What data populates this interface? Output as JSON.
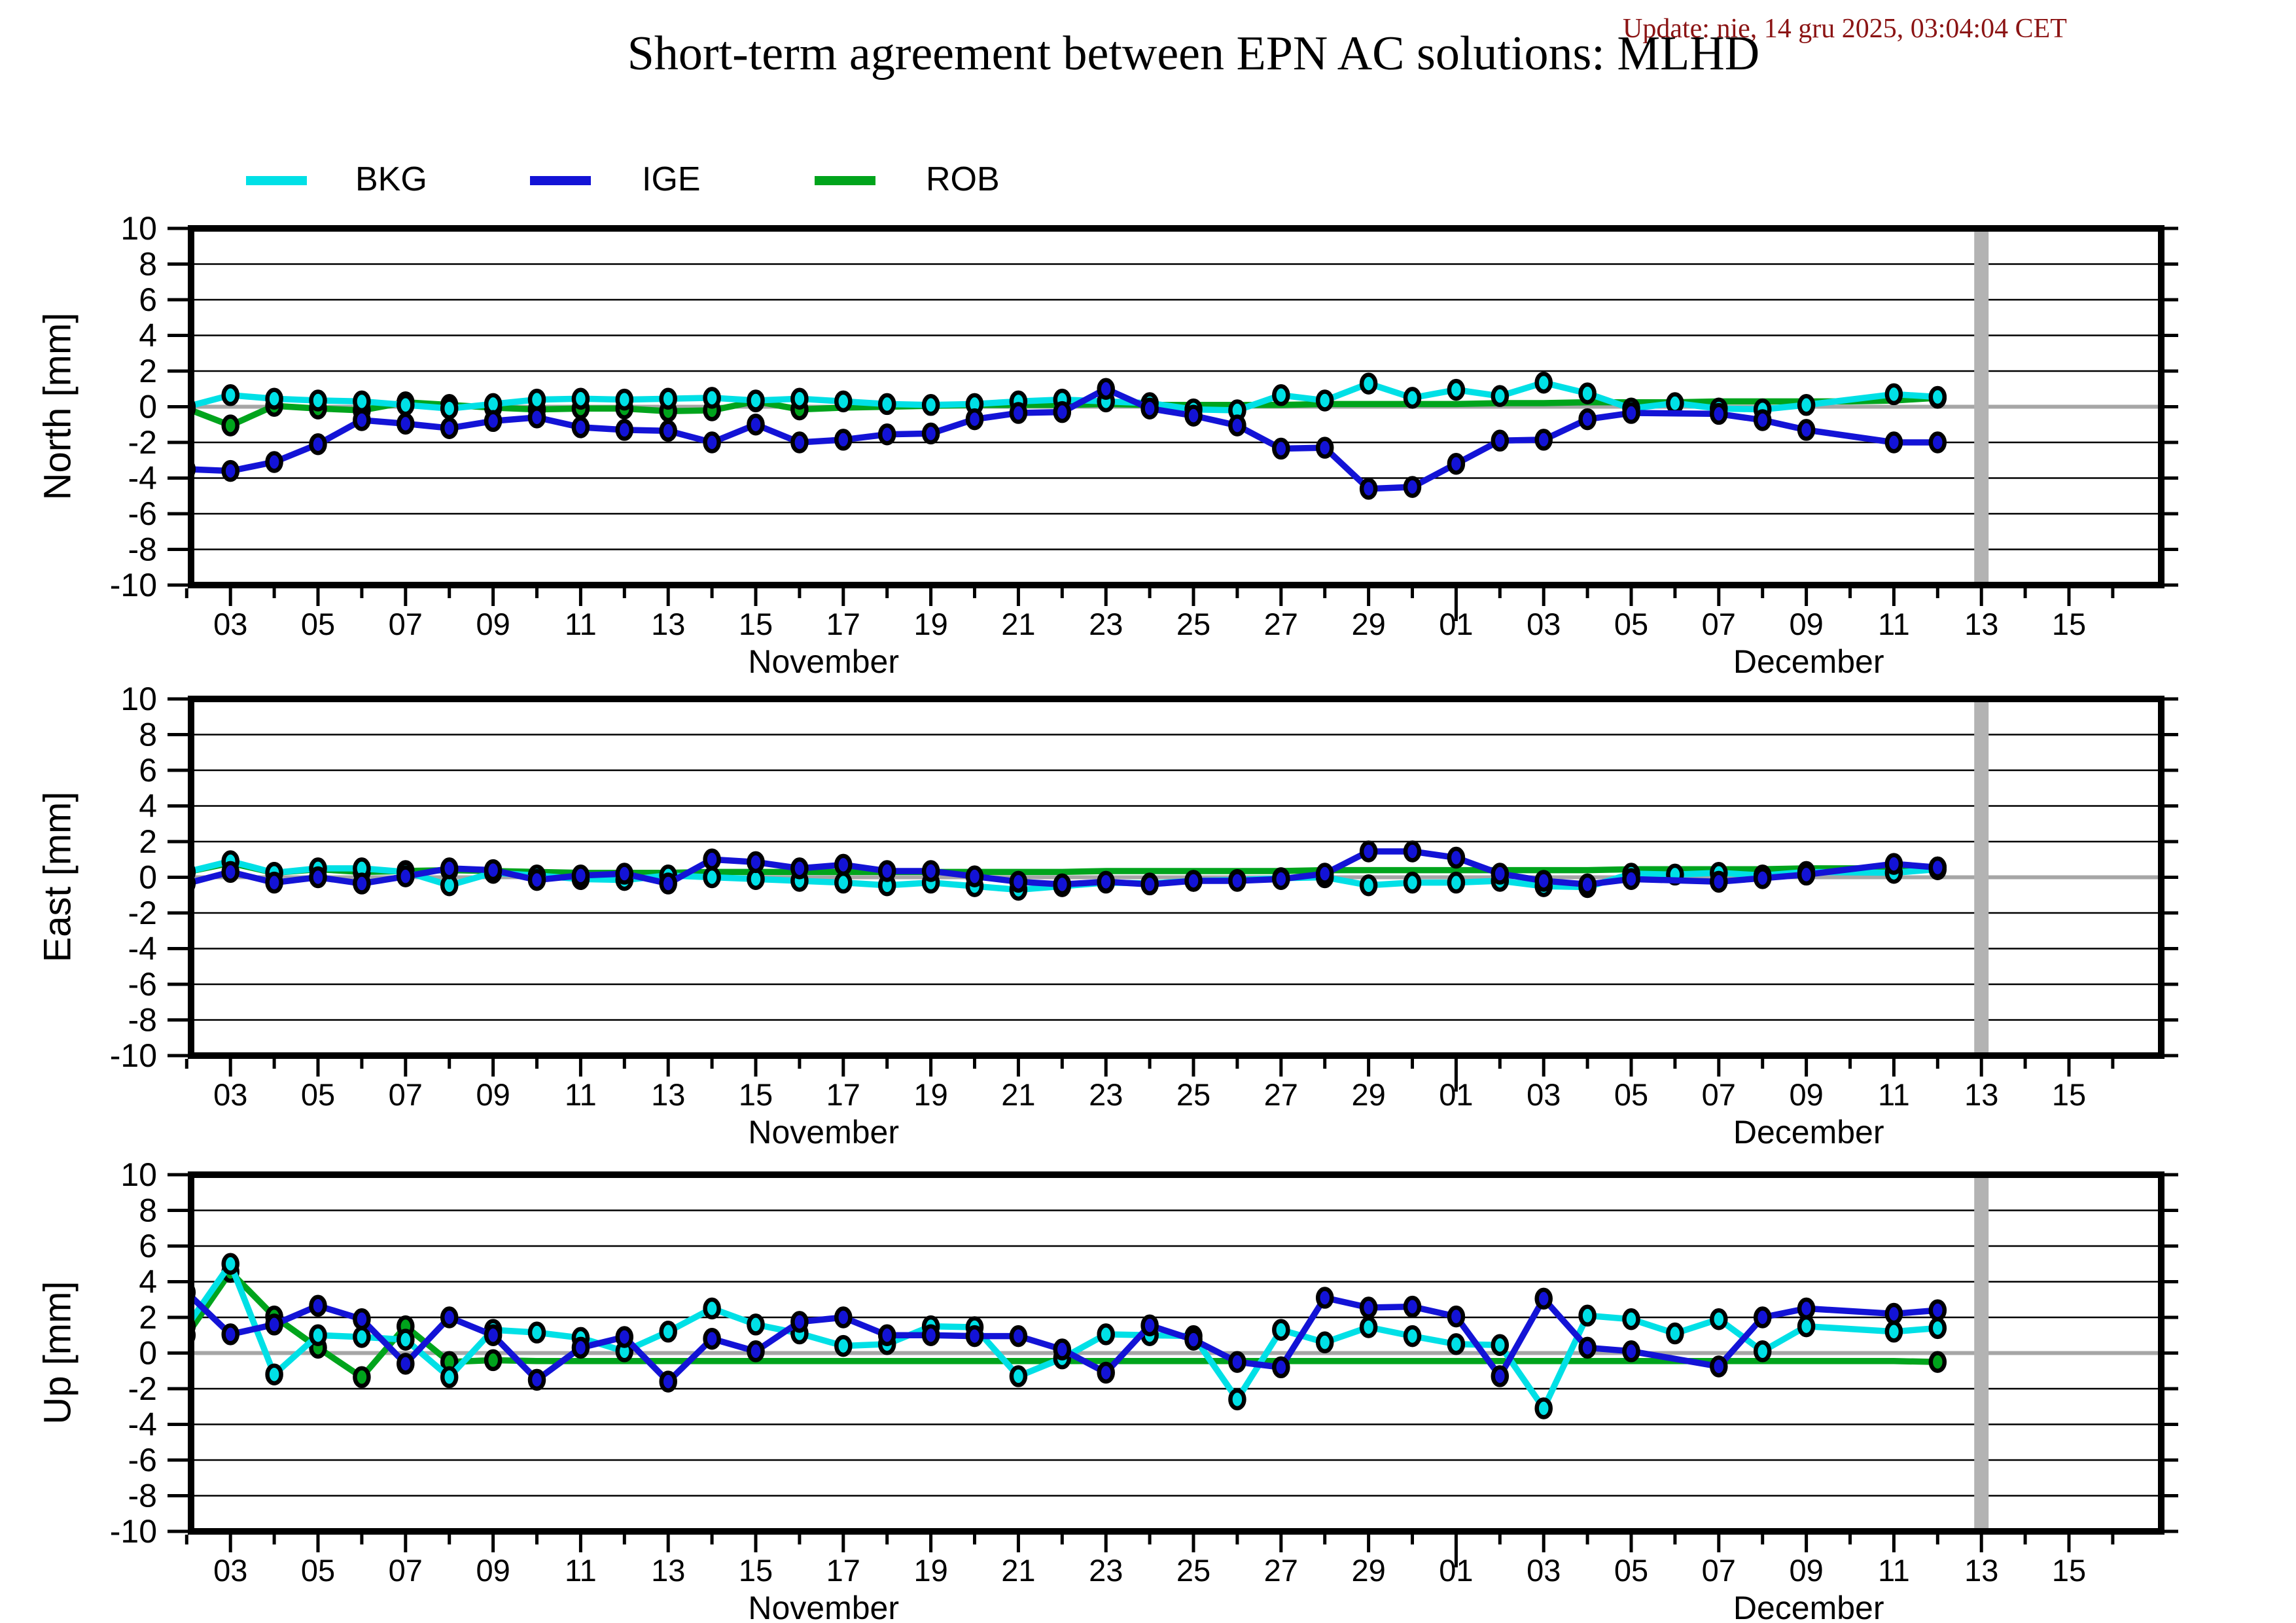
{
  "header": {
    "title": "Short-term agreement between EPN AC solutions: MLHD",
    "update": "Update: nie, 14 gru 2025, 03:04:04 CET",
    "update_color": "#8b1414"
  },
  "legend": {
    "items": [
      {
        "label": "BKG",
        "color": "#00e0e6"
      },
      {
        "label": "IGE",
        "color": "#1313d6"
      },
      {
        "label": "ROB",
        "color": "#00a41c"
      }
    ]
  },
  "chart_data": {
    "type": "line",
    "dates": [
      "Nov 02",
      "Nov 03",
      "Nov 04",
      "Nov 05",
      "Nov 06",
      "Nov 07",
      "Nov 08",
      "Nov 09",
      "Nov 10",
      "Nov 11",
      "Nov 12",
      "Nov 13",
      "Nov 14",
      "Nov 15",
      "Nov 16",
      "Nov 17",
      "Nov 18",
      "Nov 19",
      "Nov 20",
      "Nov 21",
      "Nov 22",
      "Nov 23",
      "Nov 24",
      "Nov 25",
      "Nov 26",
      "Nov 27",
      "Nov 28",
      "Nov 29",
      "Nov 30",
      "Dec 01",
      "Dec 02",
      "Dec 03",
      "Dec 04",
      "Dec 05",
      "Dec 06",
      "Dec 07",
      "Dec 08",
      "Dec 09",
      "Dec 10",
      "Dec 11",
      "Dec 12"
    ],
    "ylim": [
      -10,
      10
    ],
    "ytick_labels": [
      "10",
      "8",
      "6",
      "4",
      "2",
      "0",
      "-2",
      "-4",
      "-6",
      "-8",
      "-10"
    ],
    "x_axis": {
      "months": [
        {
          "label": "November",
          "tick_labels": [
            "03",
            "05",
            "07",
            "09",
            "11",
            "13",
            "15",
            "17",
            "19",
            "21",
            "23",
            "25",
            "27",
            "29"
          ]
        },
        {
          "label": "December",
          "tick_labels": [
            "01",
            "03",
            "05",
            "07",
            "09",
            "11",
            "13",
            "15"
          ]
        }
      ]
    },
    "gray_bar_date": "Dec 13",
    "panels": [
      {
        "ylabel": "North [mm]",
        "series": [
          {
            "name": "ROB",
            "color": "#00a41c",
            "markers": [
              0,
              1,
              2,
              3,
              4,
              5,
              6,
              7,
              8,
              9,
              10,
              11,
              12,
              13,
              14,
              40
            ],
            "values": [
              -0.1,
              -1.05,
              0.05,
              -0.1,
              -0.2,
              0.25,
              0.1,
              -0.05,
              -0.15,
              -0.1,
              -0.1,
              -0.25,
              -0.2,
              0.3,
              -0.15,
              -0.05,
              0.0,
              0.05,
              0.1,
              0.1,
              0.1,
              0.15,
              0.1,
              0.1,
              0.1,
              0.1,
              0.15,
              0.15,
              0.15,
              0.15,
              0.2,
              0.2,
              0.25,
              0.25,
              0.25,
              0.3,
              0.3,
              0.3,
              0.3,
              0.35,
              0.5
            ]
          },
          {
            "name": "BKG",
            "color": "#00e0e6",
            "markers": "all",
            "values": [
              0.0,
              0.65,
              0.45,
              0.35,
              0.3,
              0.1,
              -0.1,
              0.15,
              0.4,
              0.45,
              0.4,
              0.45,
              0.5,
              0.35,
              0.45,
              0.3,
              0.15,
              0.1,
              0.15,
              0.3,
              0.4,
              0.3,
              0.2,
              -0.15,
              -0.2,
              0.65,
              0.35,
              1.3,
              0.5,
              0.95,
              0.6,
              1.35,
              0.75,
              -0.1,
              0.2,
              -0.1,
              -0.15,
              0.1,
              null,
              0.7,
              0.55
            ]
          },
          {
            "name": "IGE",
            "color": "#1313d6",
            "markers": "all",
            "values": [
              -3.5,
              -3.6,
              -3.1,
              -2.1,
              -0.75,
              -0.95,
              -1.2,
              -0.8,
              -0.6,
              -1.15,
              -1.3,
              -1.35,
              -2.0,
              -1.0,
              -2.0,
              -1.85,
              -1.55,
              -1.5,
              -0.7,
              -0.35,
              -0.3,
              1.0,
              -0.1,
              -0.5,
              -1.05,
              -2.35,
              -2.3,
              -4.6,
              -4.5,
              -3.2,
              -1.9,
              -1.85,
              -0.7,
              -0.35,
              null,
              -0.4,
              -0.75,
              -1.3,
              null,
              -2.0,
              -2.0
            ]
          }
        ]
      },
      {
        "ylabel": "East [mm]",
        "series": [
          {
            "name": "ROB",
            "color": "#00a41c",
            "markers": [
              0,
              1,
              2,
              3,
              4,
              5,
              6,
              40
            ],
            "values": [
              0.3,
              0.8,
              0.25,
              0.45,
              0.3,
              0.35,
              0.4,
              0.35,
              0.3,
              0.25,
              0.25,
              0.25,
              0.3,
              0.3,
              0.3,
              0.3,
              0.3,
              0.3,
              0.3,
              0.3,
              0.3,
              0.35,
              0.35,
              0.35,
              0.35,
              0.35,
              0.4,
              0.4,
              0.4,
              0.4,
              0.4,
              0.4,
              0.4,
              0.45,
              0.45,
              0.45,
              0.45,
              0.5,
              0.5,
              0.5,
              0.55
            ]
          },
          {
            "name": "BKG",
            "color": "#00e0e6",
            "markers": "all",
            "values": [
              0.3,
              0.9,
              0.25,
              0.5,
              0.5,
              0.3,
              -0.45,
              0.25,
              0.1,
              -0.1,
              -0.15,
              0.1,
              0.0,
              -0.1,
              -0.2,
              -0.3,
              -0.45,
              -0.3,
              -0.5,
              -0.7,
              -0.5,
              -0.3,
              -0.35,
              -0.2,
              -0.15,
              -0.05,
              0.0,
              -0.45,
              -0.3,
              -0.3,
              -0.2,
              -0.5,
              -0.55,
              0.2,
              0.15,
              0.25,
              0.1,
              0.3,
              null,
              0.25,
              0.45
            ]
          },
          {
            "name": "IGE",
            "color": "#1313d6",
            "markers": "all",
            "values": [
              -0.35,
              0.3,
              -0.3,
              0.0,
              -0.35,
              0.05,
              0.5,
              0.4,
              -0.15,
              0.1,
              0.2,
              -0.35,
              1.0,
              0.85,
              0.5,
              0.7,
              0.35,
              0.35,
              0.05,
              -0.25,
              -0.4,
              -0.25,
              -0.4,
              -0.2,
              -0.2,
              -0.1,
              0.2,
              1.45,
              1.45,
              1.1,
              0.2,
              -0.2,
              -0.4,
              -0.1,
              null,
              -0.25,
              -0.05,
              0.15,
              null,
              0.75,
              0.55
            ]
          }
        ]
      },
      {
        "ylabel": "Up [mm]",
        "series": [
          {
            "name": "ROB",
            "color": "#00a41c",
            "markers": [
              0,
              1,
              2,
              3,
              4,
              5,
              6,
              7,
              40
            ],
            "values": [
              1.0,
              4.55,
              2.05,
              0.3,
              -1.35,
              1.5,
              -0.5,
              -0.4,
              -0.45,
              -0.45,
              -0.45,
              -0.45,
              -0.45,
              -0.45,
              -0.45,
              -0.45,
              -0.45,
              -0.45,
              -0.45,
              -0.45,
              -0.45,
              -0.45,
              -0.45,
              -0.45,
              -0.45,
              -0.45,
              -0.45,
              -0.45,
              -0.45,
              -0.45,
              -0.45,
              -0.45,
              -0.45,
              -0.45,
              -0.45,
              -0.45,
              -0.45,
              -0.45,
              -0.45,
              -0.45,
              -0.5
            ]
          },
          {
            "name": "BKG",
            "color": "#00e0e6",
            "markers": "all",
            "values": [
              1.5,
              5.0,
              -1.2,
              1.0,
              0.9,
              0.75,
              -1.35,
              1.3,
              1.15,
              0.85,
              0.1,
              1.2,
              2.5,
              1.6,
              1.1,
              0.4,
              0.5,
              1.5,
              1.45,
              -1.3,
              -0.3,
              1.05,
              1.0,
              0.95,
              -2.6,
              1.3,
              0.6,
              1.45,
              0.95,
              0.5,
              0.45,
              -3.1,
              2.1,
              1.9,
              1.1,
              1.9,
              0.1,
              1.5,
              null,
              1.2,
              1.4
            ]
          },
          {
            "name": "IGE",
            "color": "#1313d6",
            "markers": "all",
            "values": [
              3.4,
              1.05,
              1.6,
              2.65,
              1.9,
              -0.6,
              2.0,
              1.0,
              -1.5,
              0.3,
              0.9,
              -1.6,
              0.8,
              0.1,
              1.75,
              2.0,
              1.0,
              1.0,
              0.95,
              0.95,
              0.2,
              -1.1,
              1.55,
              0.75,
              -0.5,
              -0.8,
              3.1,
              2.55,
              2.6,
              2.05,
              -1.3,
              3.05,
              0.3,
              0.1,
              null,
              -0.75,
              2.0,
              2.5,
              null,
              2.2,
              2.4
            ]
          }
        ]
      }
    ]
  },
  "style_colors": {
    "grid": "#000000",
    "zero_line": "#a6a6a6",
    "frame": "#000000",
    "gray_bar": "#b3b3b3",
    "background": "#ffffff"
  }
}
